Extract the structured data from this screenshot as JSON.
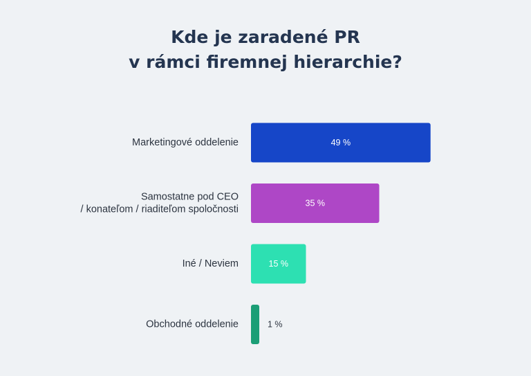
{
  "chart_data": {
    "type": "bar",
    "orientation": "horizontal",
    "title_lines": [
      "Kde je zaradené PR",
      "v rámci firemnej hierarchie?"
    ],
    "categories": [
      [
        "Marketingové oddelenie"
      ],
      [
        "Samostatne pod CEO",
        "/ konateľom / riaditeľom spoločnosti"
      ],
      [
        "Iné / Neviem"
      ],
      [
        "Obchodné oddelenie"
      ]
    ],
    "values": [
      49,
      35,
      15,
      1
    ],
    "value_labels": [
      "49 %",
      "35 %",
      "15 %",
      "1 %"
    ],
    "colors": [
      "#1646c8",
      "#ae47c6",
      "#2de0b2",
      "#1b9e76"
    ],
    "label_colors": [
      "#ffffff",
      "#ffffff",
      "#ffffff",
      "#2c3440"
    ],
    "xlim": [
      0,
      100
    ],
    "grid": false,
    "legend": false
  }
}
